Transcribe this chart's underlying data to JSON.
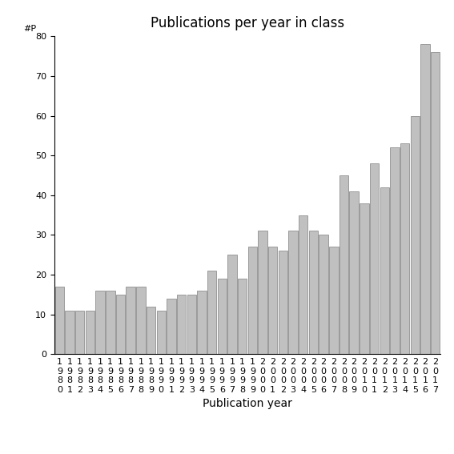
{
  "title": "Publications per year in class",
  "xlabel": "Publication year",
  "ylabel": "#P",
  "years": [
    1980,
    1981,
    1982,
    1983,
    1984,
    1985,
    1986,
    1987,
    1988,
    1989,
    1990,
    1991,
    1992,
    1993,
    1994,
    1995,
    1996,
    1997,
    1998,
    1999,
    2000,
    2001,
    2002,
    2003,
    2004,
    2005,
    2006,
    2007,
    2008,
    2009,
    2010,
    2011,
    2012,
    2013,
    2014,
    2015,
    2016,
    2017
  ],
  "values": [
    17,
    11,
    11,
    11,
    16,
    16,
    15,
    17,
    17,
    12,
    11,
    14,
    15,
    15,
    16,
    21,
    19,
    25,
    19,
    27,
    31,
    27,
    26,
    31,
    35,
    31,
    30,
    27,
    45,
    41,
    38,
    48,
    42,
    52,
    53,
    60,
    78,
    76
  ],
  "bar_color": "#c0c0c0",
  "bar_edgecolor": "#808080",
  "ylim": [
    0,
    80
  ],
  "yticks": [
    0,
    10,
    20,
    30,
    40,
    50,
    60,
    70,
    80
  ],
  "background_color": "#ffffff",
  "title_fontsize": 12,
  "axis_label_fontsize": 10,
  "tick_fontsize": 8
}
